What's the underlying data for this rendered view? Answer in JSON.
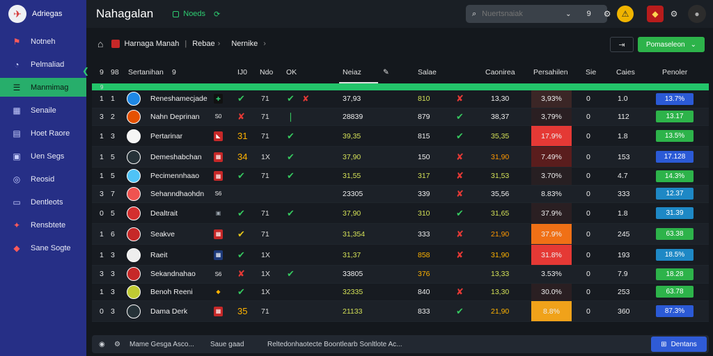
{
  "app": {
    "brand": "Adriegas",
    "title": "Nahagalan",
    "status": "Noeds"
  },
  "sidebar": {
    "items": [
      {
        "label": "Notneh",
        "icon": "flag-icon",
        "glyph": "⚑"
      },
      {
        "label": "Pelmaliad",
        "icon": "gauge-icon",
        "glyph": "◔"
      },
      {
        "label": "Manmimag",
        "icon": "list-icon",
        "glyph": "☰"
      },
      {
        "label": "Senaile",
        "icon": "grid-icon",
        "glyph": "▦"
      },
      {
        "label": "Hoet Raore",
        "icon": "calendar-icon",
        "glyph": "▤"
      },
      {
        "label": "Uen Segs",
        "icon": "document-icon",
        "glyph": "▣"
      },
      {
        "label": "Reosid",
        "icon": "target-icon",
        "glyph": "◎"
      },
      {
        "label": "Dentleots",
        "icon": "inbox-icon",
        "glyph": "▭"
      },
      {
        "label": "Rensbtete",
        "icon": "trophy-icon",
        "glyph": "✦"
      },
      {
        "label": "Sane Sogte",
        "icon": "shield-icon",
        "glyph": "◆"
      }
    ]
  },
  "search": {
    "placeholder": "Nuertsnaiak",
    "badge": "9"
  },
  "breadcrumb": {
    "team": "Harnaga Manah",
    "section": "Rebae",
    "page": "Nernike"
  },
  "actions": {
    "primary": "Pomaseleon"
  },
  "table": {
    "headers": {
      "a": "9",
      "b": "98",
      "player": "Sertanihan",
      "p_num": "9",
      "c1": "IJ0",
      "c2": "Ndo",
      "c3": "OK",
      "value": "Neiaz",
      "salary": "Salae",
      "contract": "Caonirea",
      "pct": "Persahilen",
      "size": "Sie",
      "caps": "Caies",
      "rating": "Penoler"
    },
    "subhead": "9",
    "rows": [
      {
        "a": "1",
        "b": "1",
        "name": "Reneshamecjade",
        "logo_color": "#1e88e5",
        "flag_bg": "#111",
        "flag_text": "✚",
        "flag_color": "#2ecc71",
        "st1": "✔",
        "st1_color": "#36c85f",
        "st2": "71",
        "st3": "✔",
        "st3b": "✘",
        "value": "37,93",
        "value_color": "#eeeeee",
        "salary": "810",
        "salary_color": "#d4e157",
        "chk": "✘",
        "chk_color": "#e53935",
        "contract": "13,30",
        "contract_color": "#eeeeee",
        "pct": "3,93%",
        "pct_bg": "#3b2626",
        "size": "0",
        "caps": "1.0",
        "rating": "13.7%",
        "rating_bg": "#2b5ad6",
        "tall": false
      },
      {
        "a": "3",
        "b": "2",
        "name": "Nahn Deprinan",
        "logo_color": "#e65100",
        "flag_bg": "transparent",
        "flag_text": "S0",
        "flag_color": "#eee",
        "st1": "✘",
        "st1_color": "#e53935",
        "st2": "71",
        "st3": "❘",
        "st3b": "",
        "value": "28839",
        "value_color": "#eeeeee",
        "salary": "879",
        "salary_color": "#eeeeee",
        "chk": "✔",
        "chk_color": "#36c85f",
        "contract": "38,37",
        "contract_color": "#eeeeee",
        "pct": "3,79%",
        "pct_bg": "#2a1f22",
        "size": "0",
        "caps": "112",
        "rating": "13.17",
        "rating_bg": "#2db34a",
        "tall": false
      },
      {
        "a": "1",
        "b": "3",
        "name": "Pertarinar",
        "logo_color": "#f5f5f5",
        "flag_bg": "#c62828",
        "flag_text": "◣",
        "flag_color": "#fff",
        "st1": "31",
        "st1_color": "#ffb300",
        "st2": "71",
        "st3": "✔",
        "st3b": "",
        "value": "39,35",
        "value_color": "#d4e157",
        "salary": "815",
        "salary_color": "#eeeeee",
        "chk": "✔",
        "chk_color": "#36c85f",
        "contract": "35,35",
        "contract_color": "#d4e157",
        "pct": "17.9%",
        "pct_bg": "#e53935",
        "size": "0",
        "caps": "1.8",
        "rating": "13.5%",
        "rating_bg": "#2db34a",
        "tall": true
      },
      {
        "a": "1",
        "b": "5",
        "name": "Demeshabchan",
        "logo_color": "#263238",
        "flag_bg": "#c62828",
        "flag_text": "▦",
        "flag_color": "#fff",
        "st1": "34",
        "st1_color": "#ffb300",
        "st2": "1X",
        "st3": "✔",
        "st3b": "",
        "value": "37,90",
        "value_color": "#d4e157",
        "salary": "150",
        "salary_color": "#eeeeee",
        "chk": "✘",
        "chk_color": "#e53935",
        "contract": "31,90",
        "contract_color": "#ff9800",
        "pct": "7.49%",
        "pct_bg": "#5a1d1d",
        "size": "0",
        "caps": "153",
        "rating": "17.128",
        "rating_bg": "#2b5ad6",
        "tall": true
      },
      {
        "a": "1",
        "b": "5",
        "name": "Pecimennhaao",
        "logo_color": "#4fc3f7",
        "flag_bg": "#c62828",
        "flag_text": "▦",
        "flag_color": "#fff",
        "st1": "✔",
        "st1_color": "#36c85f",
        "st2": "71",
        "st3": "✔",
        "st3b": "",
        "value": "31,55",
        "value_color": "#d4e157",
        "salary": "317",
        "salary_color": "#d4e157",
        "chk": "✘",
        "chk_color": "#e53935",
        "contract": "31,53",
        "contract_color": "#d4e157",
        "pct": "3.70%",
        "pct_bg": "#271f22",
        "size": "0",
        "caps": "4.7",
        "rating": "14.3%",
        "rating_bg": "#2db34a",
        "tall": false
      },
      {
        "a": "3",
        "b": "7",
        "name": "Sehanndhaohdn",
        "logo_color": "#ef5350",
        "flag_bg": "transparent",
        "flag_text": "S6",
        "flag_color": "#eee",
        "st1": "",
        "st1_color": "#eee",
        "st2": "",
        "st3": "",
        "st3b": "",
        "value": "23305",
        "value_color": "#eeeeee",
        "salary": "339",
        "salary_color": "#eeeeee",
        "chk": "✘",
        "chk_color": "#e53935",
        "contract": "35,56",
        "contract_color": "#eeeeee",
        "pct": "8.83%",
        "pct_bg": "transparent",
        "size": "0",
        "caps": "333",
        "rating": "12.37",
        "rating_bg": "#1e88c5",
        "tall": false
      },
      {
        "a": "0",
        "b": "5",
        "name": "Dealtrait",
        "logo_color": "#d32f2f",
        "flag_bg": "transparent",
        "flag_text": "▣",
        "flag_color": "#9ea7b0",
        "st1": "✔",
        "st1_color": "#36c85f",
        "st2": "71",
        "st3": "✔",
        "st3b": "",
        "value": "37,90",
        "value_color": "#d4e157",
        "salary": "310",
        "salary_color": "#d4e157",
        "chk": "✔",
        "chk_color": "#36c85f",
        "contract": "31,65",
        "contract_color": "#d4e157",
        "pct": "37.9%",
        "pct_bg": "#2a1f22",
        "size": "0",
        "caps": "1.8",
        "rating": "31.39",
        "rating_bg": "#1e88c5",
        "tall": true
      },
      {
        "a": "1",
        "b": "6",
        "name": "Seakve",
        "logo_color": "#c62828",
        "flag_bg": "#c62828",
        "flag_text": "▦",
        "flag_color": "#fff",
        "st1": "✔",
        "st1_color": "#e6c619",
        "st2": "71",
        "st3": "",
        "st3b": "",
        "value": "31,354",
        "value_color": "#d4e157",
        "salary": "333",
        "salary_color": "#eeeeee",
        "chk": "✘",
        "chk_color": "#e53935",
        "contract": "21,90",
        "contract_color": "#ff9800",
        "pct": "37.9%",
        "pct_bg": "#f07016",
        "size": "0",
        "caps": "245",
        "rating": "63.38",
        "rating_bg": "#2db34a",
        "tall": true
      },
      {
        "a": "1",
        "b": "3",
        "name": "Raeit",
        "logo_color": "#eeeeee",
        "flag_bg": "#1e3a7a",
        "flag_text": "▦",
        "flag_color": "#fff",
        "st1": "✔",
        "st1_color": "#36c85f",
        "st2": "1X",
        "st3": "",
        "st3b": "",
        "value": "31,37",
        "value_color": "#d4e157",
        "salary": "858",
        "salary_color": "#ffb300",
        "chk": "✘",
        "chk_color": "#e53935",
        "contract": "31,90",
        "contract_color": "#ffb300",
        "pct": "31.8%",
        "pct_bg": "#e53935",
        "size": "0",
        "caps": "193",
        "rating": "18.5%",
        "rating_bg": "#1e88c5",
        "tall": true
      },
      {
        "a": "3",
        "b": "3",
        "name": "Sekandnahao",
        "logo_color": "#c62828",
        "flag_bg": "transparent",
        "flag_text": "S6",
        "flag_color": "#eee",
        "st1": "✘",
        "st1_color": "#e53935",
        "st2": "1X",
        "st3": "✔",
        "st3b": "",
        "value": "33805",
        "value_color": "#eeeeee",
        "salary": "376",
        "salary_color": "#ffb300",
        "chk": "",
        "chk_color": "#eee",
        "contract": "13,33",
        "contract_color": "#d4e157",
        "pct": "3.53%",
        "pct_bg": "transparent",
        "size": "0",
        "caps": "7.9",
        "rating": "18.28",
        "rating_bg": "#2db34a",
        "tall": false
      },
      {
        "a": "1",
        "b": "3",
        "name": "Benoh Reeni",
        "logo_color": "#c0ca33",
        "flag_bg": "transparent",
        "flag_text": "◆",
        "flag_color": "#ffb300",
        "st1": "✔",
        "st1_color": "#36c85f",
        "st2": "1X",
        "st3": "",
        "st3b": "",
        "value": "32335",
        "value_color": "#d4e157",
        "salary": "840",
        "salary_color": "#eeeeee",
        "chk": "✘",
        "chk_color": "#e53935",
        "contract": "13,30",
        "contract_color": "#d4e157",
        "pct": "30.0%",
        "pct_bg": "#2a1f22",
        "size": "0",
        "caps": "253",
        "rating": "63.78",
        "rating_bg": "#2db34a",
        "tall": false
      },
      {
        "a": "0",
        "b": "3",
        "name": "Dama Derk",
        "logo_color": "#263238",
        "flag_bg": "#c62828",
        "flag_text": "▦",
        "flag_color": "#fff",
        "st1": "35",
        "st1_color": "#ffb300",
        "st2": "71",
        "st3": "",
        "st3b": "",
        "value": "21133",
        "value_color": "#d4e157",
        "salary": "833",
        "salary_color": "#eeeeee",
        "chk": "✔",
        "chk_color": "#36c85f",
        "contract": "21,90",
        "contract_color": "#ffb300",
        "pct": "8.8%",
        "pct_bg": "#f0a21a",
        "size": "0",
        "caps": "360",
        "rating": "87.3%",
        "rating_bg": "#2b5ad6",
        "tall": true
      }
    ]
  },
  "footer": {
    "note": "Mame Gesga Asco...",
    "status": "Saue gaad",
    "message": "Reltedonhaotecte Boontlearb Sonltlote Ac...",
    "save": "Dentans"
  }
}
